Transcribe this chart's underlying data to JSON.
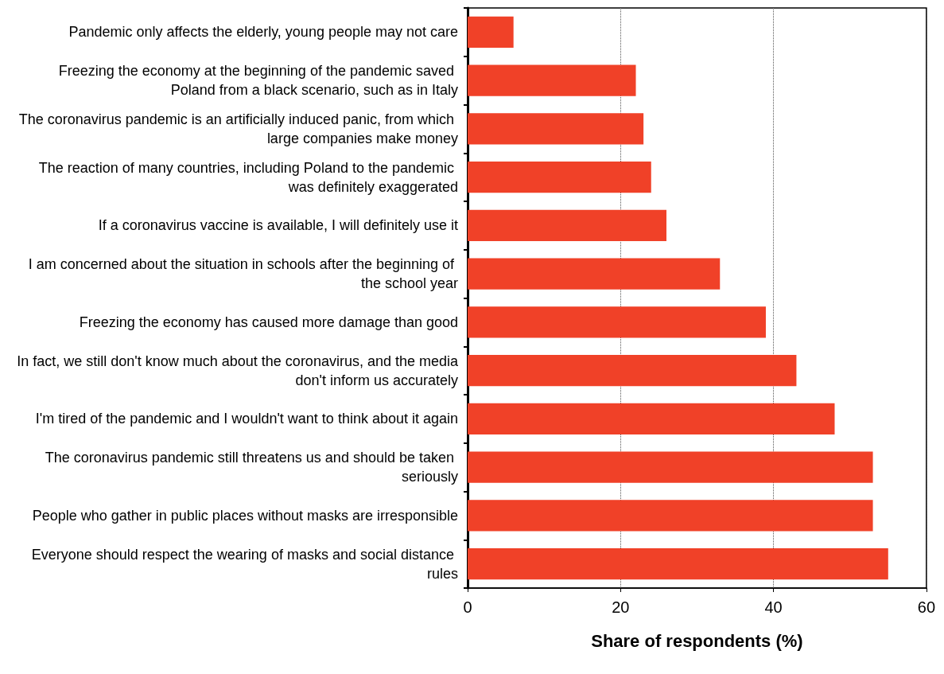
{
  "chart_data": {
    "type": "bar",
    "orientation": "horizontal",
    "xlabel": "Share of respondents (%)",
    "categories": [
      "Pandemic only affects the elderly, young people may not care",
      "Freezing the economy at the beginning of the pandemic saved Poland from a black scenario, such as in Italy",
      "The coronavirus pandemic is an artificially induced panic, from which large companies make money",
      "The reaction of many countries, including Poland to the pandemic was definitely exaggerated",
      "If a coronavirus vaccine is available, I will definitely use it",
      "I am concerned about the situation in schools after the beginning of the school year",
      "Freezing the economy has caused more damage than good",
      "In fact, we still don't know much about the coronavirus, and the media don't inform us accurately",
      "I'm tired of the pandemic and I wouldn't want to think about it again",
      "The coronavirus pandemic still threatens us and should be taken seriously",
      "People who gather in public places without masks are irresponsible",
      "Everyone should respect the wearing of masks and social distance rules"
    ],
    "values": [
      6,
      22,
      23,
      24,
      26,
      33,
      39,
      43,
      48,
      53,
      53,
      55
    ],
    "color": "#f04128",
    "xlim": [
      0,
      60
    ],
    "xticks": [
      0,
      20,
      40,
      60
    ],
    "grid": "x"
  }
}
